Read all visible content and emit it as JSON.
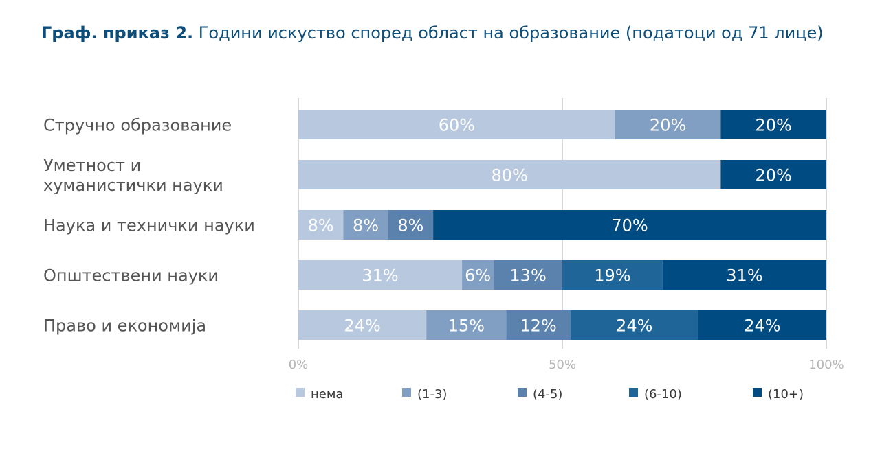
{
  "title": {
    "lead": "Граф. приказ 2.",
    "text": "Години искуство според област на образование (податоци од 71 лице)"
  },
  "chart_data": {
    "type": "bar",
    "orientation": "horizontal",
    "stacked": "percent",
    "categories": [
      [
        "Стручно образование"
      ],
      [
        "Уметност и",
        "хуманистички науки"
      ],
      [
        "Наука и технички науки"
      ],
      [
        "Општествени науки"
      ],
      [
        "Право и економија"
      ]
    ],
    "series": [
      {
        "name": "нема",
        "color": "#b8c8de",
        "values": [
          60,
          80,
          8,
          31,
          24
        ],
        "labels": [
          "60%",
          "80%",
          "8%",
          "31%",
          "24%"
        ]
      },
      {
        "name": "(1-3)",
        "color": "#819fc2",
        "values": [
          20,
          0,
          8,
          6,
          15
        ],
        "labels": [
          "20%",
          "",
          "8%",
          "6%",
          "15%"
        ]
      },
      {
        "name": "(4-5)",
        "color": "#5b82ad",
        "values": [
          0,
          0,
          8,
          13,
          12
        ],
        "labels": [
          "",
          "",
          "8%",
          "13%",
          "12%"
        ]
      },
      {
        "name": "(6-10)",
        "color": "#1f6597",
        "values": [
          0,
          0,
          0,
          19,
          24
        ],
        "labels": [
          "",
          "",
          "",
          "19%",
          "24%"
        ]
      },
      {
        "name": "(10+)",
        "color": "#004c82",
        "values": [
          20,
          20,
          70,
          31,
          24
        ],
        "labels": [
          "20%",
          "20%",
          "70%",
          "31%",
          "24%"
        ]
      }
    ],
    "x_ticks": [
      "0%",
      "50%",
      "100%"
    ],
    "xlim": [
      0,
      100
    ],
    "grid": true,
    "legend": "bottom"
  }
}
